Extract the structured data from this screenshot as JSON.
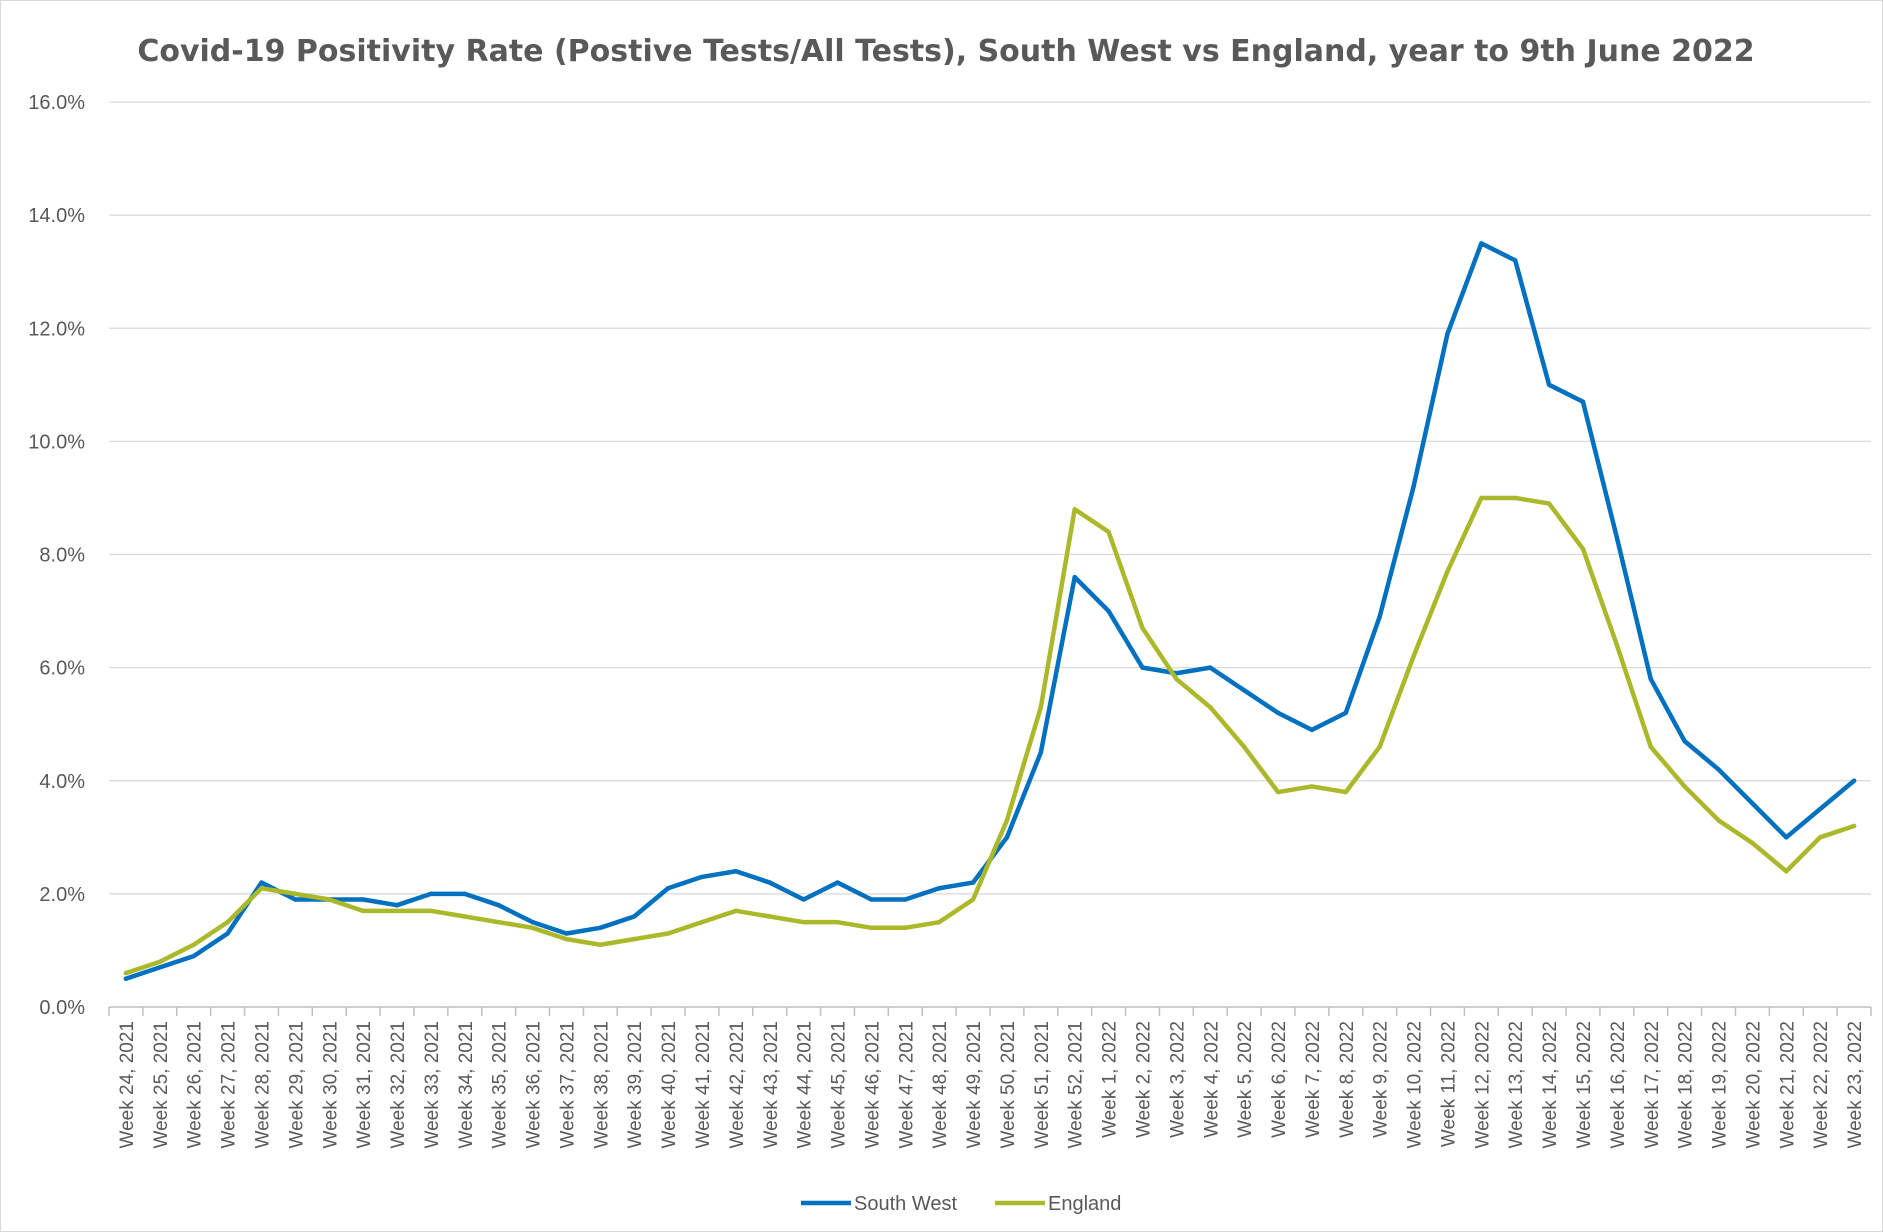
{
  "chart_data": {
    "type": "line",
    "title": "Covid-19 Positivity Rate (Postive Tests/All Tests), South West vs England, year to 9th June 2022",
    "xlabel": "",
    "ylabel": "",
    "ylim": [
      0,
      16
    ],
    "y_ticks": [
      "0.0%",
      "2.0%",
      "4.0%",
      "6.0%",
      "8.0%",
      "10.0%",
      "12.0%",
      "14.0%",
      "16.0%"
    ],
    "grid": true,
    "legend_position": "bottom",
    "categories": [
      "Week 24, 2021",
      "Week 25, 2021",
      "Week 26, 2021",
      "Week 27, 2021",
      "Week 28, 2021",
      "Week 29, 2021",
      "Week 30, 2021",
      "Week 31, 2021",
      "Week 32, 2021",
      "Week 33, 2021",
      "Week 34, 2021",
      "Week 35, 2021",
      "Week 36, 2021",
      "Week 37, 2021",
      "Week 38, 2021",
      "Week 39, 2021",
      "Week 40, 2021",
      "Week 41, 2021",
      "Week 42, 2021",
      "Week 43, 2021",
      "Week 44, 2021",
      "Week 45, 2021",
      "Week 46, 2021",
      "Week 47, 2021",
      "Week 48, 2021",
      "Week 49, 2021",
      "Week 50, 2021",
      "Week 51, 2021",
      "Week 52, 2021",
      "Week 1, 2022",
      "Week 2, 2022",
      "Week 3, 2022",
      "Week 4, 2022",
      "Week 5, 2022",
      "Week 6, 2022",
      "Week 7, 2022",
      "Week 8, 2022",
      "Week 9, 2022",
      "Week 10, 2022",
      "Week 11, 2022",
      "Week 12, 2022",
      "Week 13, 2022",
      "Week 14, 2022",
      "Week 15, 2022",
      "Week 16, 2022",
      "Week 17, 2022",
      "Week 18, 2022",
      "Week 19, 2022",
      "Week 20, 2022",
      "Week 21, 2022",
      "Week 22, 2022",
      "Week 23, 2022"
    ],
    "series": [
      {
        "name": "South West",
        "color": "#0070c0",
        "values": [
          0.5,
          0.7,
          0.9,
          1.3,
          2.2,
          1.9,
          1.9,
          1.9,
          1.8,
          2.0,
          2.0,
          1.8,
          1.5,
          1.3,
          1.4,
          1.6,
          2.1,
          2.3,
          2.4,
          2.2,
          1.9,
          2.2,
          1.9,
          1.9,
          2.1,
          2.2,
          3.0,
          4.5,
          7.6,
          7.0,
          6.0,
          5.9,
          6.0,
          5.6,
          5.2,
          4.9,
          5.2,
          6.9,
          9.2,
          11.9,
          13.5,
          13.2,
          11.0,
          10.7,
          8.3,
          5.8,
          4.7,
          4.2,
          3.6,
          3.0,
          3.5,
          4.0
        ]
      },
      {
        "name": "England",
        "color": "#aab82a",
        "values": [
          0.6,
          0.8,
          1.1,
          1.5,
          2.1,
          2.0,
          1.9,
          1.7,
          1.7,
          1.7,
          1.6,
          1.5,
          1.4,
          1.2,
          1.1,
          1.2,
          1.3,
          1.5,
          1.7,
          1.6,
          1.5,
          1.5,
          1.4,
          1.4,
          1.5,
          1.9,
          3.3,
          5.3,
          8.8,
          8.4,
          6.7,
          5.8,
          5.3,
          4.6,
          3.8,
          3.9,
          3.8,
          4.6,
          6.2,
          7.7,
          9.0,
          9.0,
          8.9,
          8.1,
          6.4,
          4.6,
          3.9,
          3.3,
          2.9,
          2.4,
          3.0,
          3.2
        ]
      }
    ]
  }
}
